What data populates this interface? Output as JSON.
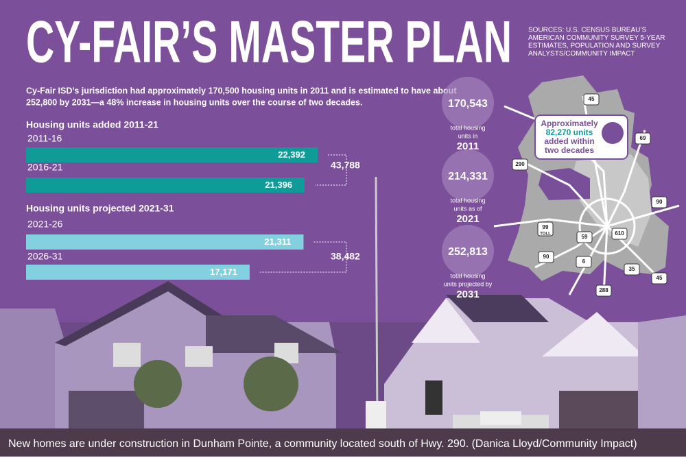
{
  "title": "CY-FAIR’S MASTER PLAN",
  "sources": [
    "SOURCES: U.S. CENSUS BUREAU’S",
    "AMERICAN COMMUNITY SURVEY 5-YEAR",
    "ESTIMATES, POPULATION AND SURVEY",
    "ANALYSTS/COMMUNITY IMPACT"
  ],
  "intro": [
    "Cy-Fair ISD’s jurisdiction had approximately 170,500 housing units in 2011 and is estimated to have about",
    "252,800 by 2031—a 48% increase in housing units over the course of two decades."
  ],
  "chart_data": {
    "type": "bar",
    "groups": [
      {
        "title": "Housing units added 2011-21",
        "categories": [
          "2011-16",
          "2016-21"
        ],
        "values": [
          22392,
          21396
        ],
        "value_labels": [
          "22,392",
          "21,396"
        ],
        "color": "#0f9c98",
        "total": 43788,
        "total_label": "43,788"
      },
      {
        "title": "Housing units projected 2021-31",
        "categories": [
          "2021-26",
          "2026-31"
        ],
        "values": [
          21311,
          17171
        ],
        "value_labels": [
          "21,311",
          "17,171"
        ],
        "color": "#82d0e0",
        "total": 38482,
        "total_label": "38,482"
      }
    ]
  },
  "stats": [
    {
      "value": "170,543",
      "label": [
        "total housing",
        "units in"
      ],
      "year": "2011"
    },
    {
      "value": "214,331",
      "label": [
        "total housing",
        "units as of"
      ],
      "year": "2021"
    },
    {
      "value": "252,813",
      "label": [
        "total housing",
        "units projected by"
      ],
      "year": "2031"
    }
  ],
  "map": {
    "callout": [
      "Approximately",
      "82,270 units",
      "added within",
      "two decades"
    ],
    "shields": [
      "45",
      "69",
      "290",
      "90",
      "99",
      "TOLL",
      "59",
      "610",
      "90",
      "6",
      "35",
      "45",
      "288"
    ]
  },
  "caption": "New homes are under construction in Dunham Pointe, a community located south of Hwy. 290. (Danica Lloyd/Community Impact)"
}
